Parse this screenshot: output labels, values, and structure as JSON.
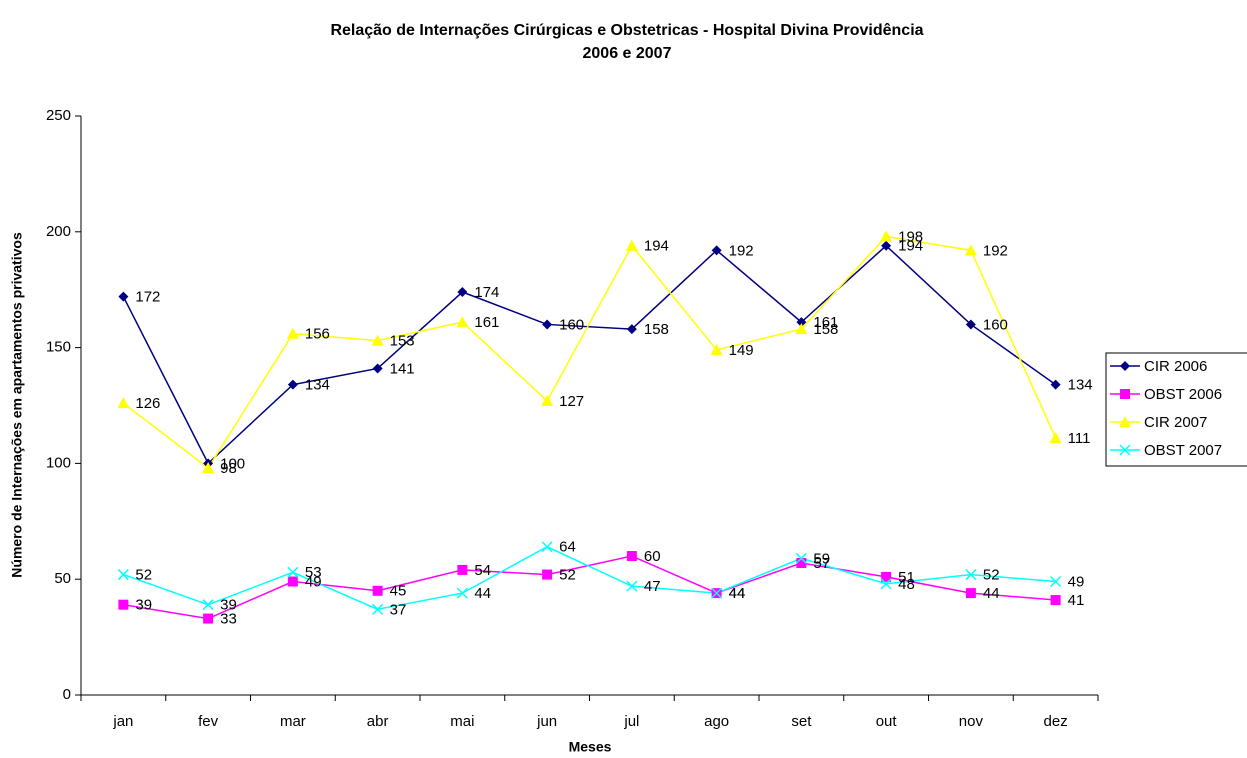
{
  "chart_data": {
    "type": "line",
    "title": "Relação de Internações Cirúrgicas e Obstetricas - Hospital Divina Providência",
    "subtitle": "2006 e 2007",
    "x_label": "Meses",
    "y_label": "Número de Internações em apartamentos privativos",
    "categories": [
      "jan",
      "fev",
      "mar",
      "abr",
      "mai",
      "jun",
      "jul",
      "ago",
      "set",
      "out",
      "nov",
      "dez"
    ],
    "series": [
      {
        "name": "CIR 2006",
        "color": "#000080",
        "marker": "diamond",
        "values": [
          172,
          100,
          134,
          141,
          174,
          160,
          158,
          192,
          161,
          194,
          160,
          134
        ]
      },
      {
        "name": "OBST 2006",
        "color": "#ff00ff",
        "marker": "square",
        "values": [
          39,
          33,
          49,
          45,
          54,
          52,
          60,
          44,
          57,
          51,
          44,
          41
        ]
      },
      {
        "name": "CIR 2007",
        "color": "#ffff00",
        "marker": "triangle",
        "values": [
          126,
          98,
          156,
          153,
          161,
          127,
          194,
          149,
          158,
          198,
          192,
          111
        ]
      },
      {
        "name": "OBST 2007",
        "color": "#00ffff",
        "marker": "x",
        "values": [
          52,
          39,
          53,
          37,
          44,
          64,
          47,
          44,
          59,
          48,
          52,
          49
        ]
      }
    ],
    "ylim": [
      0,
      250
    ],
    "yticks": [
      0,
      50,
      100,
      150,
      200,
      250
    ],
    "grid": false,
    "legend": "right",
    "data_labels": true
  }
}
